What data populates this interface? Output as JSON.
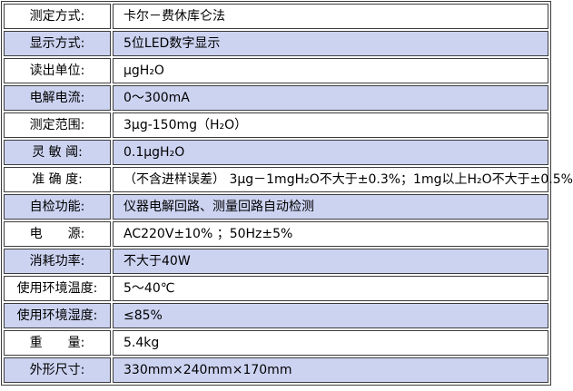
{
  "page": {
    "background_color": "#ffffff",
    "text_color": "#000000"
  },
  "table": {
    "name": "instrument-specifications",
    "alt_row_color": "#ccd3f1",
    "border_color": "#3c3c3c",
    "rows": [
      {
        "label": "测定方式:",
        "value": "卡尔－费休库仑法"
      },
      {
        "label": "显示方式:",
        "value": "5位LED数字显示"
      },
      {
        "label": "读出单位:",
        "value": "μgH₂O"
      },
      {
        "label": "电解电流:",
        "value": "0～300mA"
      },
      {
        "label": "测定范围:",
        "value": "3μg-150mg（H₂O）"
      },
      {
        "label": "灵 敏 阈:",
        "value": "0.1μgH₂O"
      },
      {
        "label": "准 确 度:",
        "value": "（不含进样误差） 3μg－1mgH₂O不大于±0.3%；1mg以上H₂O不大于±0.5%"
      },
      {
        "label": "自检功能:",
        "value": "仪器电解回路、测量回路自动检测"
      },
      {
        "label": "电　　源:",
        "value": "AC220V±10% ；50Hz±5%"
      },
      {
        "label": "消耗功率:",
        "value": "不大于40W"
      },
      {
        "label": "使用环境温度:",
        "value": "5～40℃"
      },
      {
        "label": "使用环境湿度:",
        "value": "≤85%"
      },
      {
        "label": "重　　量:",
        "value": "5.4kg"
      },
      {
        "label": "外形尺寸:",
        "value": "330mm×240mm×170mm"
      }
    ]
  }
}
